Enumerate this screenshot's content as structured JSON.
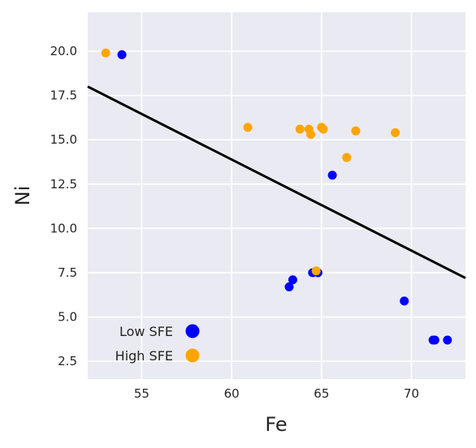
{
  "chart_data": {
    "type": "scatter",
    "title": "",
    "xlabel": "Fe",
    "ylabel": "Ni",
    "xlim": [
      52.0,
      73.0
    ],
    "ylim": [
      1.5,
      22.2
    ],
    "xticks": [
      55,
      60,
      65,
      70
    ],
    "xtick_labels": [
      "55",
      "60",
      "65",
      "70"
    ],
    "yticks": [
      2.5,
      5.0,
      7.5,
      10.0,
      12.5,
      15.0,
      17.5,
      20.0
    ],
    "ytick_labels": [
      "2.5",
      "5.0",
      "7.5",
      "10.0",
      "12.5",
      "15.0",
      "17.5",
      "20.0"
    ],
    "grid": true,
    "background_color": "#eaeaf2",
    "grid_color": "#ffffff",
    "legend_position": "lower-left",
    "series": [
      {
        "name": "Low SFE",
        "color": "#0000ff",
        "points": [
          {
            "x": 53.9,
            "y": 19.8
          },
          {
            "x": 65.6,
            "y": 13.0
          },
          {
            "x": 63.2,
            "y": 6.7
          },
          {
            "x": 63.4,
            "y": 7.1
          },
          {
            "x": 64.5,
            "y": 7.5
          },
          {
            "x": 64.8,
            "y": 7.5
          },
          {
            "x": 69.6,
            "y": 5.9
          },
          {
            "x": 71.2,
            "y": 3.7
          },
          {
            "x": 71.3,
            "y": 3.7
          },
          {
            "x": 72.0,
            "y": 3.7
          }
        ]
      },
      {
        "name": "High SFE",
        "color": "#ffa500",
        "points": [
          {
            "x": 53.0,
            "y": 19.9
          },
          {
            "x": 60.9,
            "y": 15.7
          },
          {
            "x": 63.8,
            "y": 15.6
          },
          {
            "x": 64.3,
            "y": 15.6
          },
          {
            "x": 64.4,
            "y": 15.3
          },
          {
            "x": 65.0,
            "y": 15.7
          },
          {
            "x": 65.1,
            "y": 15.6
          },
          {
            "x": 66.9,
            "y": 15.5
          },
          {
            "x": 69.1,
            "y": 15.4
          },
          {
            "x": 66.4,
            "y": 14.0
          },
          {
            "x": 64.7,
            "y": 7.6
          }
        ]
      }
    ],
    "lines": [
      {
        "color": "#000000",
        "x": [
          52.0,
          73.0
        ],
        "y": [
          18.0,
          7.2
        ]
      }
    ]
  }
}
